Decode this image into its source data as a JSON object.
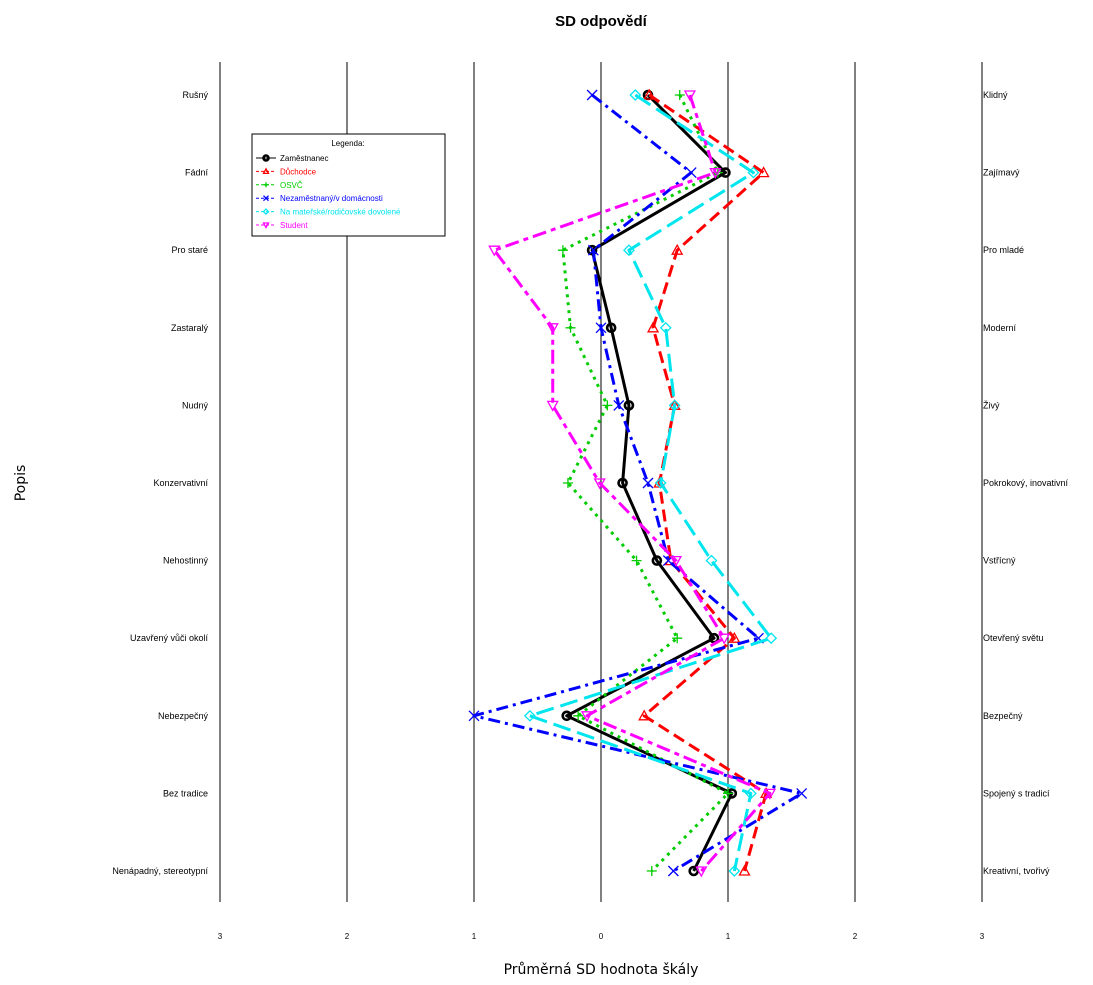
{
  "chart_data": {
    "type": "line",
    "title": "SD odpovědí",
    "xlabel": "Průměrná SD hodnota škály",
    "ylabel": "Popis",
    "xlim": [
      -3,
      3
    ],
    "xticks": [
      -3,
      -2,
      -1,
      0,
      1,
      2,
      3
    ],
    "xtick_labels": [
      "3",
      "2",
      "1",
      "0",
      "1",
      "2",
      "3"
    ],
    "grid": true,
    "legend_title": "Legenda:",
    "legend_position": "top-left",
    "left_labels": [
      "Rušný",
      "Fádní",
      "Pro staré",
      "Zastaralý",
      "Nudný",
      "Konzervativní",
      "Nehostinný",
      "Uzavřený vůči okolí",
      "Nebezpečný",
      "Bez tradice",
      "Nenápadný, stereotypní"
    ],
    "right_labels": [
      "Klidný",
      "Zajímavý",
      "Pro mladé",
      "Moderní",
      "Živý",
      "Pokrokový, inovativní",
      "Vstřícný",
      "Otevřený světu",
      "Bezpečný",
      "Spojený s tradicí",
      "Kreativní, tvořivý"
    ],
    "series": [
      {
        "name": "Zaměstnanec",
        "color": "#000000",
        "marker": "circle",
        "dash": "solid",
        "values": [
          0.37,
          0.98,
          -0.07,
          0.08,
          0.22,
          0.17,
          0.44,
          0.89,
          -0.27,
          1.03,
          0.73
        ]
      },
      {
        "name": "Důchodce",
        "color": "#ff0000",
        "marker": "triangle-up",
        "dash": "dashed",
        "values": [
          0.38,
          1.28,
          0.6,
          0.41,
          0.58,
          0.46,
          0.55,
          1.05,
          0.34,
          1.3,
          1.13
        ]
      },
      {
        "name": "OSVČ",
        "color": "#00cc00",
        "marker": "plus",
        "dash": "dotted",
        "values": [
          0.62,
          0.92,
          -0.3,
          -0.24,
          0.05,
          -0.26,
          0.28,
          0.6,
          -0.18,
          1.0,
          0.4
        ]
      },
      {
        "name": "Nezaměstnaný/v domácnosti",
        "color": "#0000ff",
        "marker": "x",
        "dash": "dashdot",
        "values": [
          -0.07,
          0.71,
          -0.06,
          0.0,
          0.14,
          0.37,
          0.53,
          1.24,
          -1.0,
          1.58,
          0.57
        ]
      },
      {
        "name": "Na mateřské/rodičovské dovolené",
        "color": "#00e5ee",
        "marker": "diamond",
        "dash": "longdash",
        "values": [
          0.27,
          1.2,
          0.22,
          0.51,
          0.58,
          0.47,
          0.87,
          1.34,
          -0.56,
          1.18,
          1.05
        ]
      },
      {
        "name": "Student",
        "color": "#ff00ff",
        "marker": "triangle-down",
        "dash": "twodash",
        "values": [
          0.7,
          0.9,
          -0.84,
          -0.38,
          -0.38,
          -0.01,
          0.59,
          0.97,
          -0.11,
          1.33,
          0.79
        ]
      }
    ]
  }
}
